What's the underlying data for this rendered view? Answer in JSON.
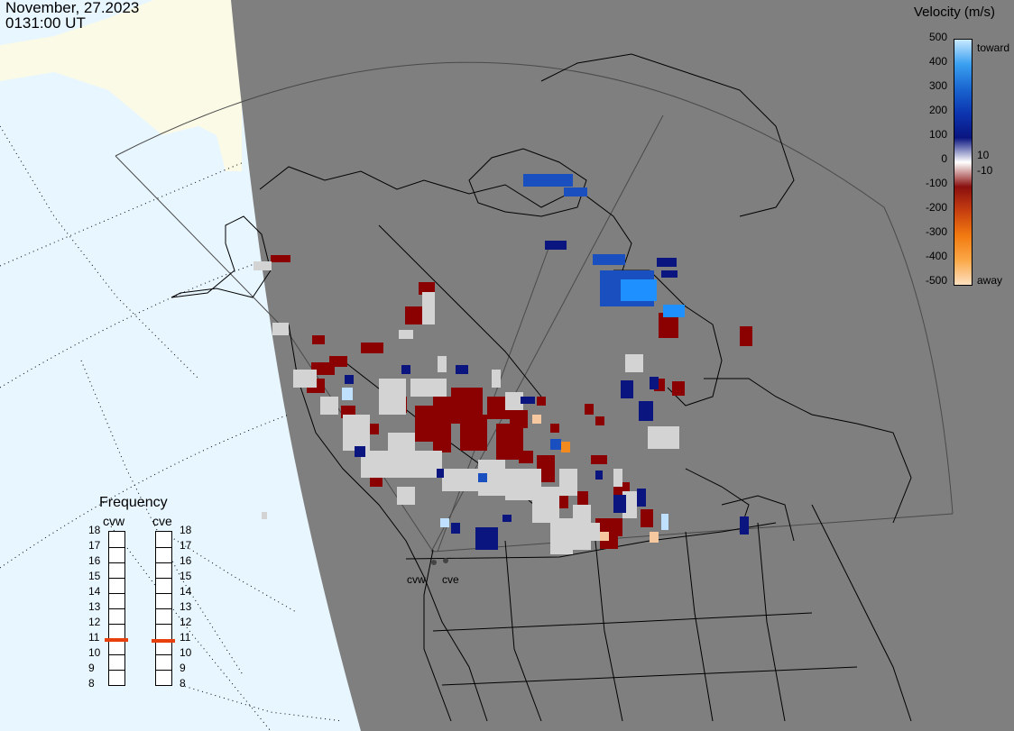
{
  "header": {
    "date": "November, 27.2023",
    "time": "0131:00 UT"
  },
  "velocity_scale": {
    "title": "Velocity (m/s)",
    "left_ticks": [
      "500",
      "400",
      "300",
      "200",
      "100",
      "0",
      "-100",
      "-200",
      "-300",
      "-400",
      "-500"
    ],
    "right_ticks": {
      "toward": "toward",
      "pos10": "10",
      "neg10": "-10",
      "away": "away"
    },
    "colors": [
      "#fde0c0",
      "#fba848",
      "#f27a10",
      "#c84010",
      "#8a0f0f",
      "#ffffff",
      "#0a1580",
      "#0c35b0",
      "#1a66d0",
      "#3aa0f0",
      "#c8e8ff"
    ]
  },
  "frequency": {
    "title": "Frequency",
    "radars": [
      "cvw",
      "cve"
    ],
    "scale": [
      "18",
      "17",
      "16",
      "15",
      "14",
      "13",
      "12",
      "11",
      "10",
      "9",
      "8"
    ],
    "cvw_value": 10.9,
    "cve_value": 10.8,
    "marker_color": "#e8400c"
  },
  "sites": [
    "cvw",
    "cve"
  ],
  "map": {
    "night_color": "#7f7f7f",
    "day_ocean_color": "#e8f6ff",
    "day_land_color": "#fafae6",
    "data_colors": {
      "red": "#8b0000",
      "grey": "#d3d3d3",
      "navy": "#0a1580",
      "blue": "#1a4fc0",
      "bright_blue": "#1e90ff",
      "light_blue": "#bfe0ff",
      "orange": "#f28a20",
      "peach": "#f6c8a0"
    }
  }
}
